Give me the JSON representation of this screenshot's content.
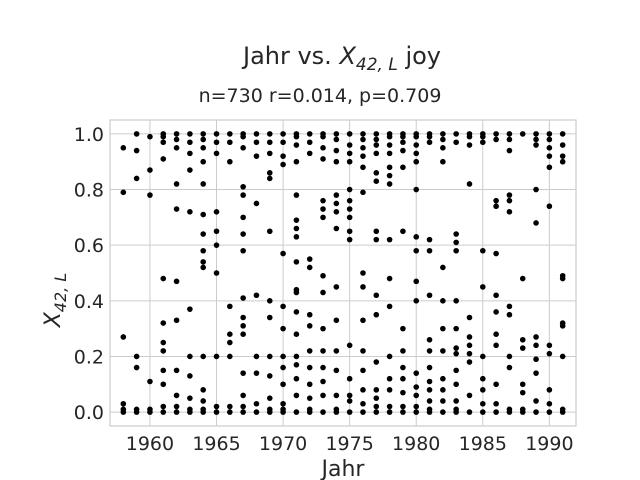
{
  "chart_data": {
    "type": "scatter",
    "title": "Jahr vs. X_{42, L} joy",
    "title_parts": {
      "prefix": "Jahr vs. ",
      "var": "X",
      "sub": "42, L",
      "suffix": " joy"
    },
    "subtitle": "n=730 r=0.014, p=0.709",
    "xlabel": "Jahr",
    "ylabel": {
      "var": "X",
      "sub": "42, L"
    },
    "xlim": [
      1957,
      1992
    ],
    "ylim": [
      -0.05,
      1.05
    ],
    "xticks": [
      1960,
      1965,
      1970,
      1975,
      1980,
      1985,
      1990
    ],
    "yticks": [
      0.0,
      0.2,
      0.4,
      0.6,
      0.8,
      1.0
    ],
    "ytick_labels": [
      "0.0",
      "0.2",
      "0.4",
      "0.6",
      "0.8",
      "1.0"
    ],
    "grid": true,
    "point_color": "#000000",
    "points": [
      [
        1958,
        0.95
      ],
      [
        1958,
        0.79
      ],
      [
        1958,
        0.27
      ],
      [
        1958,
        0.03
      ],
      [
        1958,
        0.01
      ],
      [
        1958,
        0.0
      ],
      [
        1959,
        1.0
      ],
      [
        1959,
        0.94
      ],
      [
        1959,
        0.84
      ],
      [
        1959,
        0.2
      ],
      [
        1959,
        0.16
      ],
      [
        1959,
        0.01
      ],
      [
        1959,
        0.0
      ],
      [
        1960,
        0.99
      ],
      [
        1960,
        0.87
      ],
      [
        1960,
        0.78
      ],
      [
        1960,
        0.11
      ],
      [
        1960,
        0.01
      ],
      [
        1960,
        0.0
      ],
      [
        1961,
        1.0
      ],
      [
        1961,
        0.99
      ],
      [
        1961,
        0.97
      ],
      [
        1961,
        0.91
      ],
      [
        1961,
        0.48
      ],
      [
        1961,
        0.32
      ],
      [
        1961,
        0.25
      ],
      [
        1961,
        0.22
      ],
      [
        1961,
        0.15
      ],
      [
        1961,
        0.1
      ],
      [
        1961,
        0.02
      ],
      [
        1961,
        0.0
      ],
      [
        1962,
        1.0
      ],
      [
        1962,
        0.98
      ],
      [
        1962,
        0.95
      ],
      [
        1962,
        0.82
      ],
      [
        1962,
        0.73
      ],
      [
        1962,
        0.47
      ],
      [
        1962,
        0.33
      ],
      [
        1962,
        0.15
      ],
      [
        1962,
        0.06
      ],
      [
        1962,
        0.02
      ],
      [
        1962,
        0.0
      ],
      [
        1963,
        1.0
      ],
      [
        1963,
        0.97
      ],
      [
        1963,
        0.93
      ],
      [
        1963,
        0.87
      ],
      [
        1963,
        0.72
      ],
      [
        1963,
        0.37
      ],
      [
        1963,
        0.2
      ],
      [
        1963,
        0.13
      ],
      [
        1963,
        0.05
      ],
      [
        1963,
        0.01
      ],
      [
        1963,
        0.0
      ],
      [
        1964,
        1.0
      ],
      [
        1964,
        0.98
      ],
      [
        1964,
        0.95
      ],
      [
        1964,
        0.9
      ],
      [
        1964,
        0.82
      ],
      [
        1964,
        0.71
      ],
      [
        1964,
        0.64
      ],
      [
        1964,
        0.58
      ],
      [
        1964,
        0.54
      ],
      [
        1964,
        0.52
      ],
      [
        1964,
        0.2
      ],
      [
        1964,
        0.08
      ],
      [
        1964,
        0.04
      ],
      [
        1964,
        0.01
      ],
      [
        1964,
        0.0
      ],
      [
        1965,
        1.0
      ],
      [
        1965,
        0.97
      ],
      [
        1965,
        0.93
      ],
      [
        1965,
        0.72
      ],
      [
        1965,
        0.65
      ],
      [
        1965,
        0.6
      ],
      [
        1965,
        0.5
      ],
      [
        1965,
        0.2
      ],
      [
        1965,
        0.02
      ],
      [
        1965,
        0.0
      ],
      [
        1966,
        1.0
      ],
      [
        1966,
        0.97
      ],
      [
        1966,
        0.9
      ],
      [
        1966,
        0.38
      ],
      [
        1966,
        0.28
      ],
      [
        1966,
        0.25
      ],
      [
        1966,
        0.2
      ],
      [
        1966,
        0.02
      ],
      [
        1966,
        0.0
      ],
      [
        1967,
        1.0
      ],
      [
        1967,
        0.99
      ],
      [
        1967,
        0.95
      ],
      [
        1967,
        0.81
      ],
      [
        1967,
        0.78
      ],
      [
        1967,
        0.7
      ],
      [
        1967,
        0.64
      ],
      [
        1967,
        0.58
      ],
      [
        1967,
        0.41
      ],
      [
        1967,
        0.34
      ],
      [
        1967,
        0.31
      ],
      [
        1967,
        0.28
      ],
      [
        1967,
        0.14
      ],
      [
        1967,
        0.06
      ],
      [
        1967,
        0.02
      ],
      [
        1967,
        0.0
      ],
      [
        1968,
        1.0
      ],
      [
        1968,
        0.97
      ],
      [
        1968,
        0.92
      ],
      [
        1968,
        0.75
      ],
      [
        1968,
        0.42
      ],
      [
        1968,
        0.2
      ],
      [
        1968,
        0.14
      ],
      [
        1968,
        0.03
      ],
      [
        1968,
        0.0
      ],
      [
        1969,
        1.0
      ],
      [
        1969,
        0.97
      ],
      [
        1969,
        0.93
      ],
      [
        1969,
        0.86
      ],
      [
        1969,
        0.84
      ],
      [
        1969,
        0.65
      ],
      [
        1969,
        0.4
      ],
      [
        1969,
        0.34
      ],
      [
        1969,
        0.2
      ],
      [
        1969,
        0.13
      ],
      [
        1969,
        0.05
      ],
      [
        1969,
        0.01
      ],
      [
        1969,
        0.0
      ],
      [
        1970,
        1.0
      ],
      [
        1970,
        0.97
      ],
      [
        1970,
        0.92
      ],
      [
        1970,
        0.89
      ],
      [
        1970,
        0.57
      ],
      [
        1970,
        0.38
      ],
      [
        1970,
        0.3
      ],
      [
        1970,
        0.2
      ],
      [
        1970,
        0.16
      ],
      [
        1970,
        0.1
      ],
      [
        1970,
        0.03
      ],
      [
        1970,
        0.01
      ],
      [
        1970,
        0.0
      ],
      [
        1971,
        1.0
      ],
      [
        1971,
        0.99
      ],
      [
        1971,
        0.96
      ],
      [
        1971,
        0.9
      ],
      [
        1971,
        0.78
      ],
      [
        1971,
        0.69
      ],
      [
        1971,
        0.66
      ],
      [
        1971,
        0.63
      ],
      [
        1971,
        0.54
      ],
      [
        1971,
        0.44
      ],
      [
        1971,
        0.43
      ],
      [
        1971,
        0.36
      ],
      [
        1971,
        0.28
      ],
      [
        1971,
        0.2
      ],
      [
        1971,
        0.17
      ],
      [
        1971,
        0.12
      ],
      [
        1971,
        0.06
      ],
      [
        1971,
        0.0
      ],
      [
        1972,
        1.0
      ],
      [
        1972,
        0.97
      ],
      [
        1972,
        0.93
      ],
      [
        1972,
        0.55
      ],
      [
        1972,
        0.52
      ],
      [
        1972,
        0.35
      ],
      [
        1972,
        0.31
      ],
      [
        1972,
        0.22
      ],
      [
        1972,
        0.16
      ],
      [
        1972,
        0.1
      ],
      [
        1972,
        0.05
      ],
      [
        1972,
        0.01
      ],
      [
        1972,
        0.0
      ],
      [
        1973,
        1.0
      ],
      [
        1973,
        0.99
      ],
      [
        1973,
        0.95
      ],
      [
        1973,
        0.91
      ],
      [
        1973,
        0.76
      ],
      [
        1973,
        0.73
      ],
      [
        1973,
        0.7
      ],
      [
        1973,
        0.49
      ],
      [
        1973,
        0.43
      ],
      [
        1973,
        0.3
      ],
      [
        1973,
        0.22
      ],
      [
        1973,
        0.16
      ],
      [
        1973,
        0.11
      ],
      [
        1973,
        0.06
      ],
      [
        1973,
        0.0
      ],
      [
        1974,
        1.0
      ],
      [
        1974,
        0.98
      ],
      [
        1974,
        0.94
      ],
      [
        1974,
        0.9
      ],
      [
        1974,
        0.78
      ],
      [
        1974,
        0.75
      ],
      [
        1974,
        0.72
      ],
      [
        1974,
        0.66
      ],
      [
        1974,
        0.45
      ],
      [
        1974,
        0.33
      ],
      [
        1974,
        0.22
      ],
      [
        1974,
        0.15
      ],
      [
        1974,
        0.06
      ],
      [
        1974,
        0.01
      ],
      [
        1974,
        0.0
      ],
      [
        1975,
        1.0
      ],
      [
        1975,
        0.96
      ],
      [
        1975,
        0.93
      ],
      [
        1975,
        0.9
      ],
      [
        1975,
        0.8
      ],
      [
        1975,
        0.76
      ],
      [
        1975,
        0.73
      ],
      [
        1975,
        0.7
      ],
      [
        1975,
        0.65
      ],
      [
        1975,
        0.62
      ],
      [
        1975,
        0.24
      ],
      [
        1975,
        0.12
      ],
      [
        1975,
        0.06
      ],
      [
        1975,
        0.04
      ],
      [
        1975,
        0.0
      ],
      [
        1976,
        1.0
      ],
      [
        1976,
        0.98
      ],
      [
        1976,
        0.95
      ],
      [
        1976,
        0.92
      ],
      [
        1976,
        0.88
      ],
      [
        1976,
        0.79
      ],
      [
        1976,
        0.5
      ],
      [
        1976,
        0.45
      ],
      [
        1976,
        0.33
      ],
      [
        1976,
        0.22
      ],
      [
        1976,
        0.15
      ],
      [
        1976,
        0.08
      ],
      [
        1976,
        0.03
      ],
      [
        1976,
        0.0
      ],
      [
        1977,
        1.0
      ],
      [
        1977,
        0.98
      ],
      [
        1977,
        0.96
      ],
      [
        1977,
        0.93
      ],
      [
        1977,
        0.86
      ],
      [
        1977,
        0.83
      ],
      [
        1977,
        0.65
      ],
      [
        1977,
        0.62
      ],
      [
        1977,
        0.42
      ],
      [
        1977,
        0.35
      ],
      [
        1977,
        0.18
      ],
      [
        1977,
        0.08
      ],
      [
        1977,
        0.05
      ],
      [
        1977,
        0.02
      ],
      [
        1977,
        0.0
      ],
      [
        1978,
        1.0
      ],
      [
        1978,
        0.99
      ],
      [
        1978,
        0.96
      ],
      [
        1978,
        0.93
      ],
      [
        1978,
        0.88
      ],
      [
        1978,
        0.85
      ],
      [
        1978,
        0.82
      ],
      [
        1978,
        0.62
      ],
      [
        1978,
        0.48
      ],
      [
        1978,
        0.38
      ],
      [
        1978,
        0.2
      ],
      [
        1978,
        0.12
      ],
      [
        1978,
        0.08
      ],
      [
        1978,
        0.02
      ],
      [
        1978,
        0.0
      ],
      [
        1979,
        1.0
      ],
      [
        1979,
        0.99
      ],
      [
        1979,
        0.97
      ],
      [
        1979,
        0.94
      ],
      [
        1979,
        0.88
      ],
      [
        1979,
        0.65
      ],
      [
        1979,
        0.3
      ],
      [
        1979,
        0.22
      ],
      [
        1979,
        0.16
      ],
      [
        1979,
        0.12
      ],
      [
        1979,
        0.07
      ],
      [
        1979,
        0.02
      ],
      [
        1979,
        0.0
      ],
      [
        1980,
        1.0
      ],
      [
        1980,
        0.99
      ],
      [
        1980,
        0.96
      ],
      [
        1980,
        0.93
      ],
      [
        1980,
        0.9
      ],
      [
        1980,
        0.8
      ],
      [
        1980,
        0.63
      ],
      [
        1980,
        0.58
      ],
      [
        1980,
        0.47
      ],
      [
        1980,
        0.4
      ],
      [
        1980,
        0.14
      ],
      [
        1980,
        0.09
      ],
      [
        1980,
        0.06
      ],
      [
        1980,
        0.02
      ],
      [
        1980,
        0.0
      ],
      [
        1981,
        1.0
      ],
      [
        1981,
        0.99
      ],
      [
        1981,
        0.97
      ],
      [
        1981,
        0.62
      ],
      [
        1981,
        0.58
      ],
      [
        1981,
        0.42
      ],
      [
        1981,
        0.26
      ],
      [
        1981,
        0.22
      ],
      [
        1981,
        0.16
      ],
      [
        1981,
        0.11
      ],
      [
        1981,
        0.08
      ],
      [
        1981,
        0.04
      ],
      [
        1981,
        0.01
      ],
      [
        1981,
        0.0
      ],
      [
        1982,
        1.0
      ],
      [
        1982,
        0.98
      ],
      [
        1982,
        0.95
      ],
      [
        1982,
        0.9
      ],
      [
        1982,
        0.52
      ],
      [
        1982,
        0.4
      ],
      [
        1982,
        0.3
      ],
      [
        1982,
        0.22
      ],
      [
        1982,
        0.12
      ],
      [
        1982,
        0.08
      ],
      [
        1982,
        0.04
      ],
      [
        1982,
        0.0
      ],
      [
        1983,
        1.0
      ],
      [
        1983,
        0.97
      ],
      [
        1983,
        0.64
      ],
      [
        1983,
        0.61
      ],
      [
        1983,
        0.58
      ],
      [
        1983,
        0.4
      ],
      [
        1983,
        0.3
      ],
      [
        1983,
        0.23
      ],
      [
        1983,
        0.21
      ],
      [
        1983,
        0.15
      ],
      [
        1983,
        0.1
      ],
      [
        1983,
        0.04
      ],
      [
        1983,
        0.01
      ],
      [
        1983,
        0.0
      ],
      [
        1984,
        1.0
      ],
      [
        1984,
        0.99
      ],
      [
        1984,
        0.96
      ],
      [
        1984,
        0.82
      ],
      [
        1984,
        0.34
      ],
      [
        1984,
        0.27
      ],
      [
        1984,
        0.24
      ],
      [
        1984,
        0.21
      ],
      [
        1984,
        0.18
      ],
      [
        1984,
        0.06
      ],
      [
        1984,
        0.0
      ],
      [
        1985,
        1.0
      ],
      [
        1985,
        0.99
      ],
      [
        1985,
        0.97
      ],
      [
        1985,
        0.58
      ],
      [
        1985,
        0.45
      ],
      [
        1985,
        0.2
      ],
      [
        1985,
        0.12
      ],
      [
        1985,
        0.08
      ],
      [
        1985,
        0.03
      ],
      [
        1985,
        0.0
      ],
      [
        1986,
        1.0
      ],
      [
        1986,
        0.98
      ],
      [
        1986,
        0.76
      ],
      [
        1986,
        0.74
      ],
      [
        1986,
        0.57
      ],
      [
        1986,
        0.42
      ],
      [
        1986,
        0.36
      ],
      [
        1986,
        0.28
      ],
      [
        1986,
        0.24
      ],
      [
        1986,
        0.1
      ],
      [
        1986,
        0.03
      ],
      [
        1986,
        0.0
      ],
      [
        1987,
        1.0
      ],
      [
        1987,
        0.98
      ],
      [
        1987,
        0.94
      ],
      [
        1987,
        0.78
      ],
      [
        1987,
        0.76
      ],
      [
        1987,
        0.72
      ],
      [
        1987,
        0.38
      ],
      [
        1987,
        0.35
      ],
      [
        1987,
        0.2
      ],
      [
        1987,
        0.16
      ],
      [
        1987,
        0.01
      ],
      [
        1987,
        0.0
      ],
      [
        1988,
        1.0
      ],
      [
        1988,
        0.48
      ],
      [
        1988,
        0.26
      ],
      [
        1988,
        0.23
      ],
      [
        1988,
        0.1
      ],
      [
        1988,
        0.07
      ],
      [
        1988,
        0.01
      ],
      [
        1988,
        0.0
      ],
      [
        1989,
        1.0
      ],
      [
        1989,
        0.98
      ],
      [
        1989,
        0.96
      ],
      [
        1989,
        0.8
      ],
      [
        1989,
        0.68
      ],
      [
        1989,
        0.27
      ],
      [
        1989,
        0.24
      ],
      [
        1989,
        0.19
      ],
      [
        1989,
        0.14
      ],
      [
        1989,
        0.04
      ],
      [
        1989,
        0.0
      ],
      [
        1990,
        1.0
      ],
      [
        1990,
        0.98
      ],
      [
        1990,
        0.95
      ],
      [
        1990,
        0.92
      ],
      [
        1990,
        0.88
      ],
      [
        1990,
        0.74
      ],
      [
        1990,
        0.24
      ],
      [
        1990,
        0.21
      ],
      [
        1990,
        0.08
      ],
      [
        1990,
        0.03
      ],
      [
        1990,
        0.0
      ],
      [
        1991,
        1.0
      ],
      [
        1991,
        0.96
      ],
      [
        1991,
        0.92
      ],
      [
        1991,
        0.9
      ],
      [
        1991,
        0.49
      ],
      [
        1991,
        0.48
      ],
      [
        1991,
        0.32
      ],
      [
        1991,
        0.31
      ],
      [
        1991,
        0.2
      ],
      [
        1991,
        0.01
      ],
      [
        1991,
        0.0
      ]
    ]
  }
}
